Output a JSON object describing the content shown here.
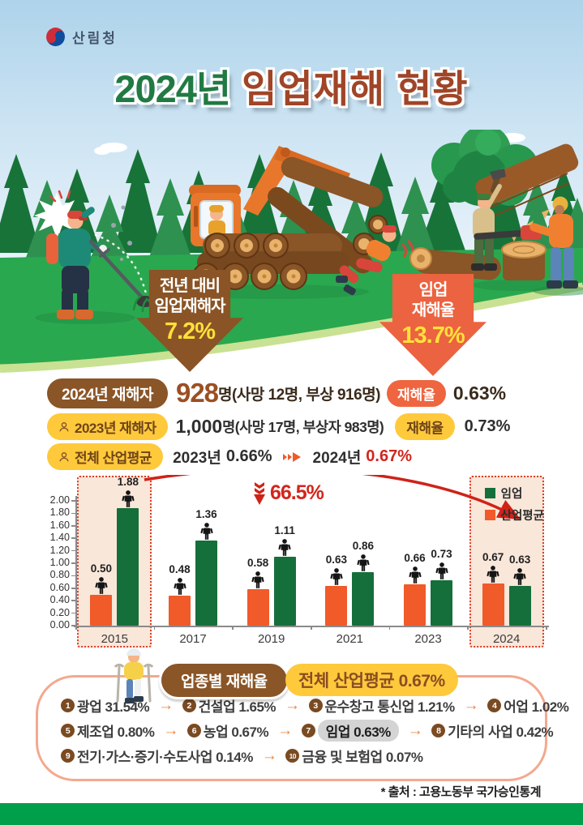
{
  "poster": {
    "agency": "산림청",
    "title": {
      "year": "2024년",
      "main": "임업재해 현황"
    },
    "source": "* 출처 : 고용노동부 국가승인통계"
  },
  "callouts": {
    "left": {
      "line1": "전년 대비",
      "line2": "임업재해자",
      "value": "7.2%"
    },
    "right": {
      "line1": "임업",
      "line2": "재해율",
      "value": "13.7%"
    }
  },
  "stats": {
    "row1": {
      "pill": "2024년 재해자",
      "count": "928",
      "unit": "명",
      "detail": "(사망 12명, 부상 916명)",
      "rate_label": "재해율",
      "rate_value": "0.63%"
    },
    "row2": {
      "pill": "2023년 재해자",
      "count": "1,000",
      "unit": "명",
      "detail": "(사망 17명, 부상자 983명)",
      "rate_label": "재해율",
      "rate_value": "0.73%"
    },
    "row3": {
      "pill": "전체 산업평균",
      "year_a": "2023년",
      "value_a": "0.66%",
      "year_b": "2024년",
      "value_b": "0.67%"
    }
  },
  "chart_data": {
    "type": "bar",
    "categories": [
      "2015",
      "2017",
      "2019",
      "2021",
      "2023",
      "2024"
    ],
    "series": [
      {
        "name": "임업",
        "color": "#156f3a",
        "values": [
          1.88,
          1.36,
          1.11,
          0.86,
          0.73,
          0.63
        ]
      },
      {
        "name": "산업평균",
        "color": "#f15a29",
        "values": [
          0.5,
          0.48,
          0.58,
          0.63,
          0.66,
          0.67
        ]
      }
    ],
    "ylim": [
      0,
      2.0
    ],
    "ytick_step": 0.2,
    "grid": false,
    "legend_position": "top-right",
    "highlighted_categories": [
      "2015",
      "2024"
    ],
    "annotation": {
      "text": "66.5%"
    }
  },
  "industry": {
    "badge": "업종별 재해율",
    "average_label": "전체 산업평균 0.67%",
    "items": [
      {
        "num": "1",
        "name": "광업",
        "rate": "31.54%"
      },
      {
        "num": "2",
        "name": "건설업",
        "rate": "1.65%"
      },
      {
        "num": "3",
        "name": "운수창고 통신업",
        "rate": "1.21%"
      },
      {
        "num": "4",
        "name": "어업",
        "rate": "1.02%"
      },
      {
        "num": "5",
        "name": "제조업",
        "rate": "0.80%"
      },
      {
        "num": "6",
        "name": "농업",
        "rate": "0.67%"
      },
      {
        "num": "7",
        "name": "임업",
        "rate": "0.63%",
        "highlight": true
      },
      {
        "num": "8",
        "name": "기타의 사업",
        "rate": "0.42%"
      },
      {
        "num": "9",
        "name": "전기·가스·증기·수도사업",
        "rate": "0.14%"
      },
      {
        "num": "10",
        "name": "금융 및 보험업",
        "rate": "0.07%"
      }
    ],
    "rows": [
      [
        0,
        1,
        2,
        3
      ],
      [
        4,
        5,
        6,
        7
      ],
      [
        8,
        9
      ]
    ]
  },
  "colors": {
    "title_green": "#217a43",
    "title_brown": "#a04527",
    "callout_brown": "#8a5426",
    "callout_orange": "#eb6340",
    "value_yellow": "#ffe13a",
    "pill_yellow": "#ffc93c",
    "pill_brown": "#8a5527",
    "pill_orange": "#ee6540",
    "highlight_red": "#d3251c",
    "bar_green": "#156f3a",
    "bar_orange": "#f15a29",
    "footer_green": "#009f4c"
  }
}
